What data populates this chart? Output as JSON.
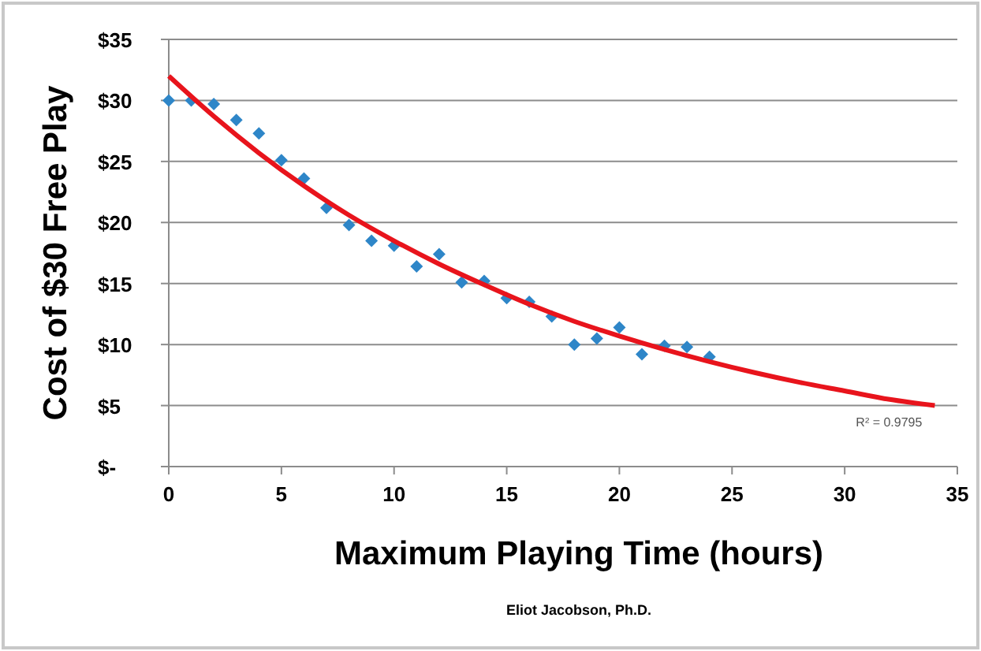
{
  "chart_data": {
    "type": "scatter",
    "xlabel": "Maximum Playing Time (hours)",
    "ylabel": "Cost of $30 Free Play",
    "xlim": [
      0,
      35
    ],
    "xticks": [
      0,
      5,
      10,
      15,
      20,
      25,
      30,
      35
    ],
    "ylim": [
      0,
      35
    ],
    "yticks": [
      {
        "value": 0,
        "label": "$-"
      },
      {
        "value": 5,
        "label": "$5"
      },
      {
        "value": 10,
        "label": "$10"
      },
      {
        "value": 15,
        "label": "$15"
      },
      {
        "value": 20,
        "label": "$20"
      },
      {
        "value": 25,
        "label": "$25"
      },
      {
        "value": 30,
        "label": "$30"
      },
      {
        "value": 35,
        "label": "$35"
      }
    ],
    "grid": "y",
    "series": [
      {
        "marker": "diamond",
        "color": "#2e86c8",
        "x": [
          0,
          1,
          2,
          3,
          4,
          5,
          6,
          7,
          8,
          9,
          10,
          11,
          12,
          13,
          14,
          15,
          16,
          17,
          18,
          19,
          20,
          21,
          22,
          23,
          24
        ],
        "values": [
          30,
          30,
          29.7,
          28.4,
          27.3,
          25.1,
          23.6,
          21.2,
          19.8,
          18.5,
          18.1,
          16.4,
          17.4,
          15.1,
          15.2,
          13.8,
          13.5,
          12.3,
          10,
          10.5,
          11.4,
          9.2,
          9.9,
          9.8,
          9
        ]
      },
      {
        "type": "line",
        "marker": "none",
        "color": "#e8141c",
        "x": [
          0,
          2,
          4,
          6,
          8,
          10,
          12,
          14,
          16,
          18,
          20,
          22,
          24,
          26,
          28,
          30,
          32,
          34
        ],
        "values": [
          32,
          28.7,
          25.7,
          23,
          20.6,
          18.5,
          16.6,
          14.9,
          13.3,
          11.9,
          10.7,
          9.6,
          8.6,
          7.7,
          6.9,
          6.2,
          5.5,
          5
        ]
      }
    ],
    "annotations": [
      "R² = 0.9795",
      "Eliot Jacobson, Ph.D."
    ]
  }
}
